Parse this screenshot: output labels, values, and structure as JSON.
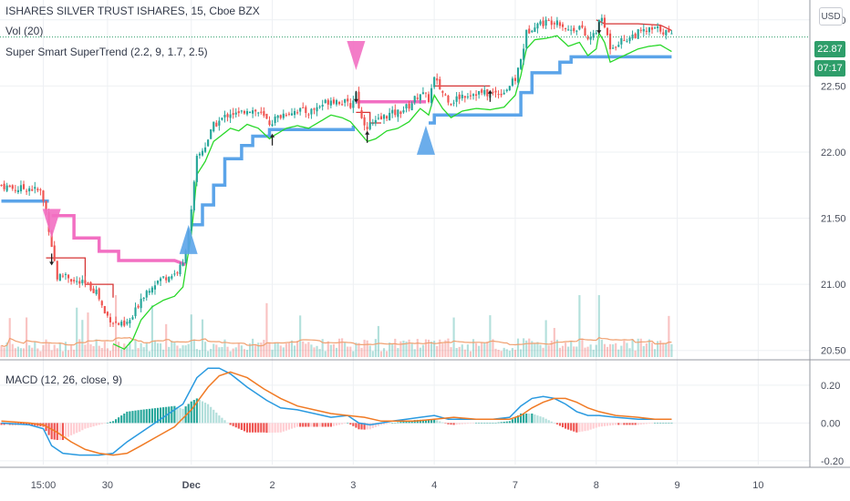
{
  "legend": {
    "title": "ISHARES SILVER TRUST ISHARES, 15, Cboe BZX",
    "volume": "Vol (20)",
    "supertrend": "Super Smart SuperTrend (2.2, 9, 1.7, 2.5)",
    "macd": "MACD (12, 26, close, 9)"
  },
  "currency_label": "USD",
  "price_tag": {
    "price": "22.87",
    "countdown": "07:17"
  },
  "colors": {
    "up": "#26a69a",
    "down": "#ef5350",
    "supertrend_up": "#5ba4e9",
    "supertrend_down": "#f26fc2",
    "stop_green": "#29d829",
    "stop_red": "#d63434",
    "macd_line": "#2a9ae0",
    "signal_line": "#f07a24",
    "volume_ma": "#f0a070"
  },
  "chart_data": [
    {
      "type": "candlestick",
      "title": "ISHARES SILVER TRUST ISHARES, 15, Cboe BZX",
      "y_ticks": [
        "23.00",
        "22.50",
        "22.00",
        "21.50",
        "21.00",
        "20.50"
      ],
      "ylim": [
        20.45,
        23.15
      ],
      "x_ticks": [
        "15:00",
        "30",
        "Dec",
        "2",
        "3",
        "4",
        "7",
        "8",
        "9",
        "10"
      ],
      "x_tick_index": [
        15,
        38,
        68,
        97,
        126,
        155,
        184,
        213,
        242,
        271
      ],
      "series": {
        "close_path": [
          [
            0,
            21.75
          ],
          [
            5,
            21.72
          ],
          [
            10,
            21.73
          ],
          [
            14,
            21.7
          ],
          [
            16,
            21.55
          ],
          [
            18,
            21.3
          ],
          [
            20,
            21.05
          ],
          [
            23,
            21.08
          ],
          [
            26,
            21.02
          ],
          [
            30,
            21.0
          ],
          [
            34,
            20.95
          ],
          [
            37,
            20.78
          ],
          [
            40,
            20.72
          ],
          [
            44,
            20.68
          ],
          [
            47,
            20.75
          ],
          [
            50,
            20.9
          ],
          [
            54,
            21.0
          ],
          [
            58,
            21.05
          ],
          [
            62,
            21.08
          ],
          [
            65,
            21.15
          ],
          [
            68,
            21.55
          ],
          [
            70,
            21.95
          ],
          [
            73,
            22.05
          ],
          [
            76,
            22.2
          ],
          [
            79,
            22.25
          ],
          [
            82,
            22.3
          ],
          [
            85,
            22.28
          ],
          [
            88,
            22.33
          ],
          [
            92,
            22.3
          ],
          [
            96,
            22.22
          ],
          [
            98,
            22.25
          ],
          [
            102,
            22.3
          ],
          [
            106,
            22.32
          ],
          [
            110,
            22.3
          ],
          [
            114,
            22.35
          ],
          [
            118,
            22.4
          ],
          [
            122,
            22.38
          ],
          [
            125,
            22.35
          ],
          [
            127,
            22.45
          ],
          [
            129,
            22.25
          ],
          [
            131,
            22.2
          ],
          [
            134,
            22.22
          ],
          [
            138,
            22.28
          ],
          [
            142,
            22.3
          ],
          [
            146,
            22.35
          ],
          [
            150,
            22.45
          ],
          [
            153,
            22.4
          ],
          [
            155,
            22.55
          ],
          [
            158,
            22.45
          ],
          [
            161,
            22.38
          ],
          [
            165,
            22.43
          ],
          [
            170,
            22.45
          ],
          [
            175,
            22.44
          ],
          [
            180,
            22.46
          ],
          [
            184,
            22.55
          ],
          [
            186,
            22.7
          ],
          [
            188,
            22.9
          ],
          [
            191,
            22.97
          ],
          [
            195,
            22.98
          ],
          [
            199,
            23.0
          ],
          [
            203,
            22.92
          ],
          [
            207,
            22.95
          ],
          [
            210,
            22.85
          ],
          [
            213,
            22.9
          ],
          [
            214,
            23.02
          ],
          [
            216,
            22.95
          ],
          [
            218,
            22.8
          ],
          [
            220,
            22.82
          ],
          [
            224,
            22.86
          ],
          [
            228,
            22.9
          ],
          [
            232,
            22.92
          ],
          [
            236,
            22.93
          ],
          [
            240,
            22.88
          ]
        ]
      }
    },
    {
      "type": "bar",
      "title": "Vol (20)"
    },
    {
      "type": "line",
      "title": "MACD (12, 26, close, 9)",
      "y_ticks": [
        "0.20",
        "0.00",
        "-0.20"
      ],
      "ylim": [
        -0.22,
        0.32
      ],
      "series": [
        {
          "name": "MACD",
          "points": [
            [
              0,
              0.0
            ],
            [
              10,
              -0.01
            ],
            [
              15,
              -0.03
            ],
            [
              18,
              -0.12
            ],
            [
              22,
              -0.16
            ],
            [
              28,
              -0.17
            ],
            [
              35,
              -0.17
            ],
            [
              40,
              -0.16
            ],
            [
              45,
              -0.1
            ],
            [
              50,
              -0.05
            ],
            [
              55,
              0.0
            ],
            [
              60,
              0.05
            ],
            [
              65,
              0.1
            ],
            [
              70,
              0.24
            ],
            [
              74,
              0.29
            ],
            [
              78,
              0.29
            ],
            [
              82,
              0.26
            ],
            [
              88,
              0.19
            ],
            [
              95,
              0.12
            ],
            [
              100,
              0.08
            ],
            [
              106,
              0.07
            ],
            [
              112,
              0.05
            ],
            [
              118,
              0.03
            ],
            [
              124,
              0.04
            ],
            [
              128,
              0.0
            ],
            [
              132,
              -0.01
            ],
            [
              136,
              0.0
            ],
            [
              140,
              0.01
            ],
            [
              145,
              0.02
            ],
            [
              150,
              0.03
            ],
            [
              155,
              0.04
            ],
            [
              160,
              0.02
            ],
            [
              165,
              0.02
            ],
            [
              170,
              0.02
            ],
            [
              176,
              0.02
            ],
            [
              182,
              0.03
            ],
            [
              186,
              0.09
            ],
            [
              190,
              0.13
            ],
            [
              194,
              0.14
            ],
            [
              198,
              0.13
            ],
            [
              202,
              0.1
            ],
            [
              206,
              0.06
            ],
            [
              210,
              0.04
            ],
            [
              214,
              0.04
            ],
            [
              220,
              0.03
            ],
            [
              228,
              0.02
            ],
            [
              234,
              0.02
            ],
            [
              240,
              0.02
            ]
          ]
        },
        {
          "name": "Signal",
          "points": [
            [
              0,
              0.01
            ],
            [
              10,
              0.0
            ],
            [
              15,
              -0.01
            ],
            [
              20,
              -0.05
            ],
            [
              25,
              -0.1
            ],
            [
              30,
              -0.14
            ],
            [
              35,
              -0.16
            ],
            [
              40,
              -0.17
            ],
            [
              45,
              -0.16
            ],
            [
              50,
              -0.12
            ],
            [
              56,
              -0.07
            ],
            [
              62,
              -0.02
            ],
            [
              68,
              0.07
            ],
            [
              74,
              0.19
            ],
            [
              78,
              0.25
            ],
            [
              82,
              0.27
            ],
            [
              88,
              0.24
            ],
            [
              94,
              0.18
            ],
            [
              100,
              0.13
            ],
            [
              106,
              0.09
            ],
            [
              112,
              0.07
            ],
            [
              118,
              0.05
            ],
            [
              124,
              0.04
            ],
            [
              130,
              0.03
            ],
            [
              136,
              0.01
            ],
            [
              142,
              0.01
            ],
            [
              148,
              0.01
            ],
            [
              155,
              0.02
            ],
            [
              162,
              0.03
            ],
            [
              170,
              0.02
            ],
            [
              176,
              0.02
            ],
            [
              182,
              0.02
            ],
            [
              186,
              0.04
            ],
            [
              190,
              0.08
            ],
            [
              194,
              0.11
            ],
            [
              198,
              0.13
            ],
            [
              202,
              0.13
            ],
            [
              206,
              0.11
            ],
            [
              210,
              0.08
            ],
            [
              214,
              0.06
            ],
            [
              220,
              0.04
            ],
            [
              228,
              0.03
            ],
            [
              234,
              0.02
            ],
            [
              240,
              0.02
            ]
          ]
        }
      ]
    }
  ]
}
